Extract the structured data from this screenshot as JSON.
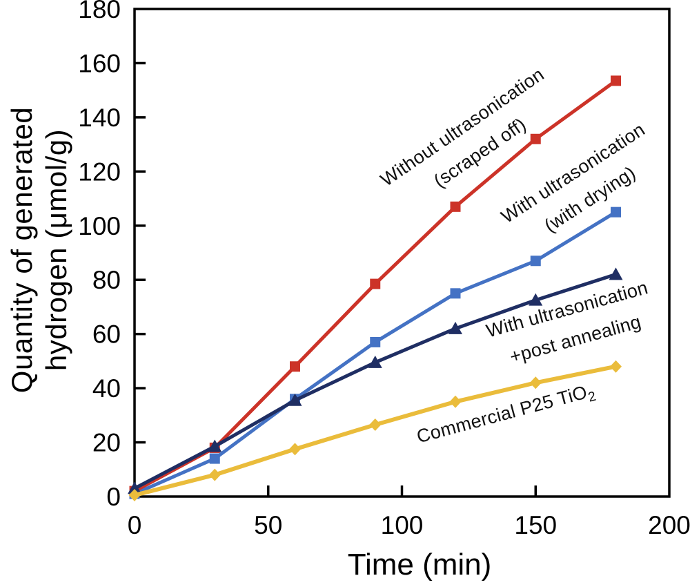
{
  "axes": {
    "y_title_line1": "Quantity of generated",
    "y_title_line2": "hydrogen (μmol/g)",
    "x_title": "Time (min)"
  },
  "curve_labels": {
    "without_ultrasonication": {
      "line1": "Without ultrasonication",
      "line2": "(scraped off)"
    },
    "with_ultrasonication_drying": {
      "line1": "With ultrasonication",
      "line2": "(with drying)"
    },
    "with_ultrasonication_annealing": {
      "line1": "With ultrasonication",
      "line2": "+post annealing"
    },
    "commercial_p25": {
      "text": "Commercial P25 TiO",
      "sub": "2"
    }
  },
  "chart_data": {
    "type": "line",
    "title": "",
    "xlabel": "Time (min)",
    "ylabel": "Quantity of generated hydrogen (μmol/g)",
    "xlim": [
      0,
      200
    ],
    "ylim": [
      0,
      180
    ],
    "x_ticks": [
      0,
      50,
      100,
      150,
      200
    ],
    "y_ticks": [
      0,
      20,
      40,
      60,
      80,
      100,
      120,
      140,
      160,
      180
    ],
    "grid": false,
    "legend_position": "inline rotated labels next to each curve",
    "x": [
      0,
      30,
      60,
      90,
      120,
      150,
      180
    ],
    "series": [
      {
        "name": "Without ultrasonication (scraped off)",
        "color": "#cc3328",
        "marker": "square",
        "values": [
          2,
          18,
          48,
          78.5,
          107,
          132,
          153.5
        ]
      },
      {
        "name": "With ultrasonication (with drying)",
        "color": "#4472c4",
        "marker": "square",
        "values": [
          1,
          14,
          36,
          57,
          75,
          87,
          105
        ]
      },
      {
        "name": "With ultrasonication +post annealing",
        "color": "#1f2e63",
        "marker": "triangle",
        "values": [
          3,
          18.5,
          35.5,
          49.5,
          62,
          72.5,
          82
        ]
      },
      {
        "name": "Commercial P25 TiO2",
        "color": "#eabc3b",
        "marker": "diamond",
        "values": [
          0.5,
          8,
          17.5,
          26.5,
          35,
          42,
          48
        ]
      }
    ],
    "axis_color": "#000000",
    "text_color": "#000000"
  }
}
